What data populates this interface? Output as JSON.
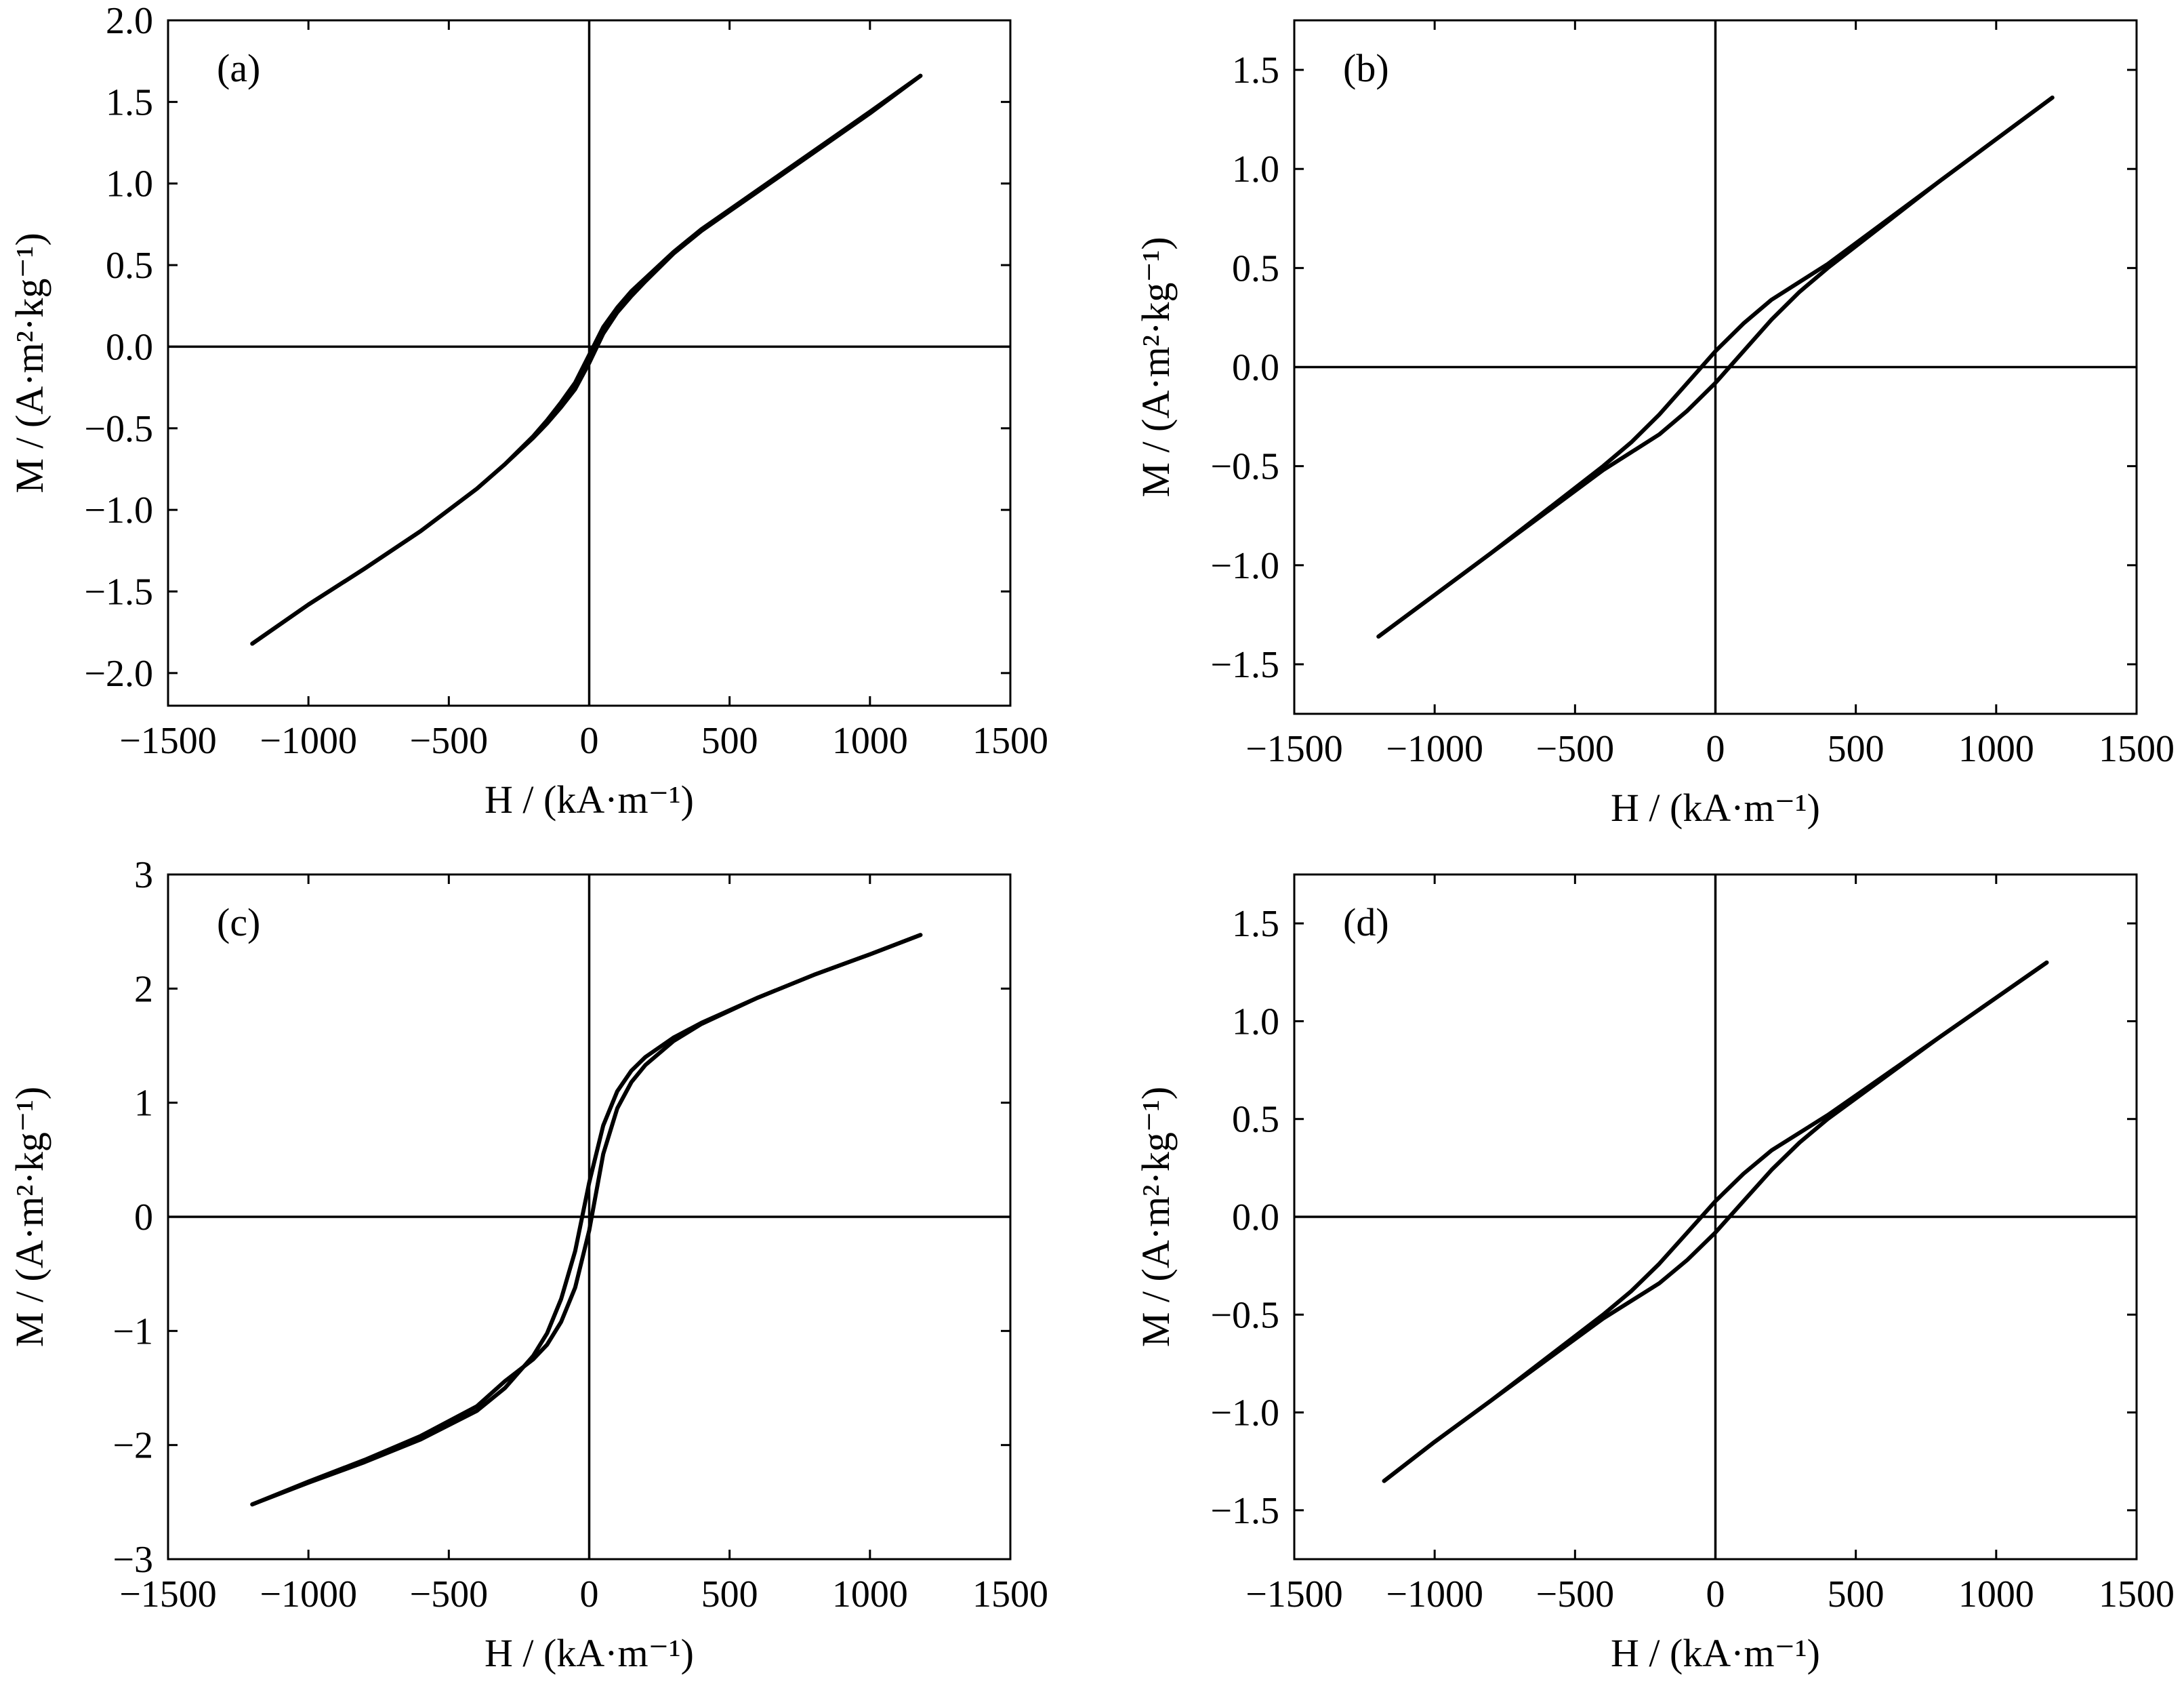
{
  "chart_data": [
    {
      "panel": "(a)",
      "type": "line",
      "xlabel": "H / (kA·m⁻¹)",
      "ylabel": "M / (A·m²·kg⁻¹)",
      "xlim": [
        -1500,
        1500
      ],
      "ylim": [
        -2.2,
        2.0
      ],
      "xticks": [
        -1500,
        -1000,
        -500,
        0,
        500,
        1000,
        1500
      ],
      "xtick_labels": [
        "−1500",
        "−1000",
        "−500",
        "0",
        "500",
        "1000",
        "1500"
      ],
      "yticks": [
        -2.0,
        -1.5,
        -1.0,
        -0.5,
        0.0,
        0.5,
        1.0,
        1.5,
        2.0
      ],
      "ytick_labels": [
        "−2.0",
        "−1.5",
        "−1.0",
        "−0.5",
        "0.0",
        "0.5",
        "1.0",
        "1.5",
        "2.0"
      ],
      "series": [
        {
          "x": [
            -1200,
            -1000,
            -800,
            -600,
            -400,
            -300,
            -200,
            -150,
            -100,
            -50,
            0,
            50,
            100,
            150,
            200,
            300,
            400,
            500,
            600,
            800,
            1000,
            1180
          ],
          "y": [
            -1.82,
            -1.58,
            -1.36,
            -1.13,
            -0.87,
            -0.72,
            -0.55,
            -0.45,
            -0.34,
            -0.22,
            -0.05,
            0.12,
            0.24,
            0.34,
            0.42,
            0.58,
            0.72,
            0.84,
            0.96,
            1.2,
            1.44,
            1.66
          ]
        },
        {
          "x": [
            -1200,
            -1000,
            -800,
            -600,
            -400,
            -300,
            -200,
            -150,
            -100,
            -50,
            0,
            50,
            100,
            150,
            200,
            300,
            400,
            500,
            600,
            800,
            1000,
            1180
          ],
          "y": [
            -1.82,
            -1.58,
            -1.36,
            -1.13,
            -0.87,
            -0.72,
            -0.56,
            -0.47,
            -0.37,
            -0.26,
            -0.1,
            0.08,
            0.21,
            0.31,
            0.4,
            0.57,
            0.71,
            0.83,
            0.95,
            1.19,
            1.43,
            1.66
          ]
        }
      ]
    },
    {
      "panel": "(b)",
      "type": "line",
      "xlabel": "H / (kA·m⁻¹)",
      "ylabel": "M / (A·m²·kg⁻¹)",
      "xlim": [
        -1500,
        1500
      ],
      "ylim": [
        -1.75,
        1.75
      ],
      "xticks": [
        -1500,
        -1000,
        -500,
        0,
        500,
        1000,
        1500
      ],
      "xtick_labels": [
        "−1500",
        "−1000",
        "−500",
        "0",
        "500",
        "1000",
        "1500"
      ],
      "yticks": [
        -1.5,
        -1.0,
        -0.5,
        0.0,
        0.5,
        1.0,
        1.5
      ],
      "ytick_labels": [
        "−1.5",
        "−1.0",
        "−0.5",
        "0.0",
        "0.5",
        "1.0",
        "1.5"
      ],
      "series": [
        {
          "x": [
            -1200,
            -1000,
            -800,
            -600,
            -400,
            -300,
            -200,
            -100,
            0,
            100,
            200,
            300,
            400,
            600,
            800,
            1000,
            1200
          ],
          "y": [
            -1.36,
            -1.15,
            -0.94,
            -0.72,
            -0.5,
            -0.38,
            -0.24,
            -0.08,
            0.08,
            0.22,
            0.34,
            0.43,
            0.52,
            0.73,
            0.94,
            1.15,
            1.36
          ]
        },
        {
          "x": [
            -1200,
            -1000,
            -800,
            -600,
            -400,
            -300,
            -200,
            -100,
            0,
            100,
            200,
            300,
            400,
            600,
            800,
            1000,
            1200
          ],
          "y": [
            -1.36,
            -1.15,
            -0.94,
            -0.73,
            -0.52,
            -0.43,
            -0.34,
            -0.22,
            -0.08,
            0.08,
            0.24,
            0.38,
            0.5,
            0.72,
            0.94,
            1.15,
            1.36
          ]
        }
      ]
    },
    {
      "panel": "(c)",
      "type": "line",
      "xlabel": "H / (kA·m⁻¹)",
      "ylabel": "M / (A·m²·kg⁻¹)",
      "xlim": [
        -1500,
        1500
      ],
      "ylim": [
        -3,
        3
      ],
      "xticks": [
        -1500,
        -1000,
        -500,
        0,
        500,
        1000,
        1500
      ],
      "xtick_labels": [
        "−1500",
        "−1000",
        "−500",
        "0",
        "500",
        "1000",
        "1500"
      ],
      "yticks": [
        -3,
        -2,
        -1,
        0,
        1,
        2,
        3
      ],
      "ytick_labels": [
        "−3",
        "−2",
        "−1",
        "0",
        "1",
        "2",
        "3"
      ],
      "series": [
        {
          "x": [
            -1200,
            -1000,
            -800,
            -600,
            -400,
            -300,
            -200,
            -150,
            -100,
            -50,
            0,
            50,
            100,
            150,
            200,
            300,
            400,
            600,
            800,
            1000,
            1180
          ],
          "y": [
            -2.52,
            -2.33,
            -2.15,
            -1.95,
            -1.7,
            -1.5,
            -1.22,
            -1.02,
            -0.72,
            -0.3,
            0.3,
            0.8,
            1.1,
            1.28,
            1.4,
            1.57,
            1.7,
            1.92,
            2.12,
            2.3,
            2.47
          ]
        },
        {
          "x": [
            -1200,
            -1000,
            -800,
            -600,
            -400,
            -300,
            -200,
            -150,
            -100,
            -50,
            0,
            50,
            100,
            150,
            200,
            300,
            400,
            600,
            800,
            1000,
            1180
          ],
          "y": [
            -2.52,
            -2.32,
            -2.13,
            -1.92,
            -1.66,
            -1.44,
            -1.25,
            -1.12,
            -0.92,
            -0.62,
            -0.12,
            0.55,
            0.95,
            1.18,
            1.33,
            1.54,
            1.69,
            1.92,
            2.12,
            2.3,
            2.47
          ]
        }
      ]
    },
    {
      "panel": "(d)",
      "type": "line",
      "xlabel": "H / (kA·m⁻¹)",
      "ylabel": "M / (A·m²·kg⁻¹)",
      "xlim": [
        -1500,
        1500
      ],
      "ylim": [
        -1.75,
        1.75
      ],
      "xticks": [
        -1500,
        -1000,
        -500,
        0,
        500,
        1000,
        1500
      ],
      "xtick_labels": [
        "−1500",
        "−1000",
        "−500",
        "0",
        "500",
        "1000",
        "1500"
      ],
      "yticks": [
        -1.5,
        -1.0,
        -0.5,
        0.0,
        0.5,
        1.0,
        1.5
      ],
      "ytick_labels": [
        "−1.5",
        "−1.0",
        "−0.5",
        "0.0",
        "0.5",
        "1.0",
        "1.5"
      ],
      "series": [
        {
          "x": [
            -1180,
            -1000,
            -800,
            -600,
            -400,
            -300,
            -200,
            -100,
            0,
            100,
            200,
            300,
            400,
            600,
            800,
            1000,
            1180
          ],
          "y": [
            -1.35,
            -1.15,
            -0.94,
            -0.72,
            -0.5,
            -0.38,
            -0.24,
            -0.08,
            0.08,
            0.22,
            0.34,
            0.43,
            0.52,
            0.72,
            0.92,
            1.12,
            1.3
          ]
        },
        {
          "x": [
            -1180,
            -1000,
            -800,
            -600,
            -400,
            -300,
            -200,
            -100,
            0,
            100,
            200,
            300,
            400,
            600,
            800,
            1000,
            1180
          ],
          "y": [
            -1.35,
            -1.15,
            -0.94,
            -0.73,
            -0.52,
            -0.43,
            -0.34,
            -0.22,
            -0.08,
            0.08,
            0.24,
            0.38,
            0.5,
            0.71,
            0.92,
            1.12,
            1.3
          ]
        }
      ]
    }
  ]
}
